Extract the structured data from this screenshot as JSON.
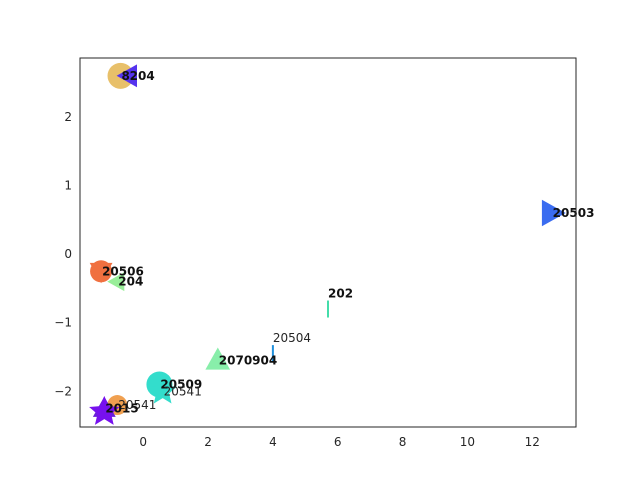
{
  "chart_data": {
    "type": "scatter",
    "title": "",
    "xlabel": "",
    "ylabel": "",
    "xlim": [
      -1.95,
      13.35
    ],
    "ylim": [
      -2.52,
      2.86
    ],
    "x_ticks": [
      0,
      2,
      4,
      6,
      8,
      10,
      12
    ],
    "y_ticks": [
      -2,
      -1,
      0,
      1,
      2
    ],
    "grid": false,
    "points": [
      {
        "x": -0.7,
        "y": 2.6,
        "marker": "circle",
        "size": 13,
        "color": "#e8c06a",
        "label": "8",
        "bold": true
      },
      {
        "x": -0.45,
        "y": 2.6,
        "marker": "triangle-left",
        "size": 12,
        "color": "#5533ee",
        "label": "204",
        "bold": true
      },
      {
        "x": 12.6,
        "y": 0.6,
        "marker": "triangle-right",
        "size": 14,
        "color": "#3a6cf0",
        "label": "20503",
        "bold": true
      },
      {
        "x": -1.3,
        "y": -0.25,
        "marker": "circle",
        "size": 11,
        "color": "#f07040",
        "label": "20506",
        "bold": true
      },
      {
        "x": -1.3,
        "y": -0.25,
        "marker": "triangle-down",
        "size": 12,
        "color": "#f07040",
        "label": "",
        "bold": false
      },
      {
        "x": -0.8,
        "y": -0.4,
        "marker": "triangle-left",
        "size": 10,
        "color": "#99ee99",
        "label": "204",
        "bold": true
      },
      {
        "x": 5.7,
        "y": -0.8,
        "marker": "vline",
        "size": 17,
        "color": "#44ddaa",
        "label": "202",
        "bold": true
      },
      {
        "x": 4.0,
        "y": -1.45,
        "marker": "vline",
        "size": 17,
        "color": "#2090dd",
        "label": "20504",
        "bold": false
      },
      {
        "x": 2.3,
        "y": -1.55,
        "marker": "triangle-up",
        "size": 13,
        "color": "#88eeaa",
        "label": "2070904",
        "bold": true
      },
      {
        "x": 0.5,
        "y": -1.9,
        "marker": "circle",
        "size": 13,
        "color": "#33ddcc",
        "label": "20509",
        "bold": true
      },
      {
        "x": 0.6,
        "y": -2.0,
        "marker": "star",
        "size": 15,
        "color": "#33ddcc",
        "label": "20541",
        "bold": false
      },
      {
        "x": -0.8,
        "y": -2.2,
        "marker": "circle",
        "size": 10,
        "color": "#f0a050",
        "label": "20541",
        "bold": false
      },
      {
        "x": -1.2,
        "y": -2.25,
        "marker": "triangle-up",
        "size": 12,
        "color": "#6a1fd8",
        "label": "2015",
        "bold": true
      },
      {
        "x": -1.2,
        "y": -2.3,
        "marker": "star",
        "size": 16,
        "color": "#7711ee",
        "label": "",
        "bold": false
      }
    ]
  }
}
